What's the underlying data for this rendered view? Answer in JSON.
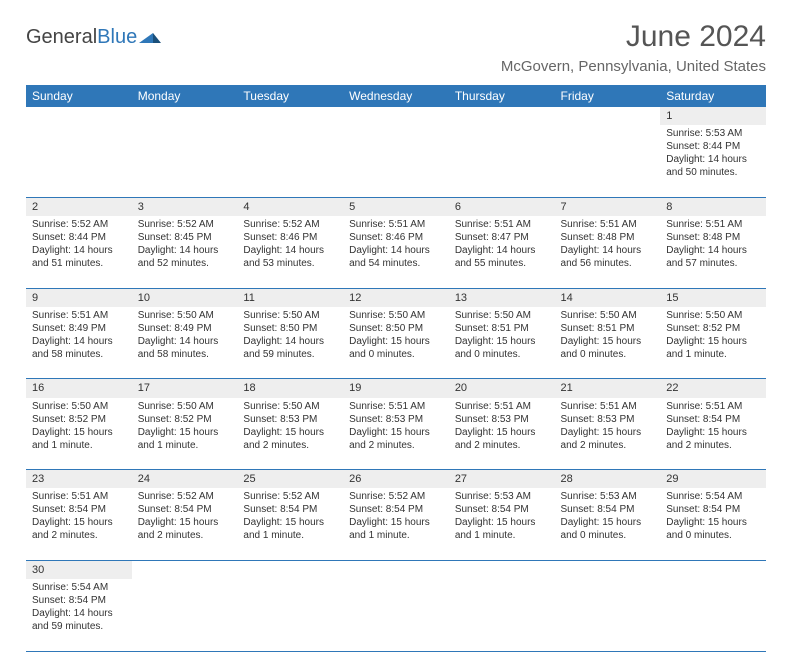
{
  "brand": {
    "part1": "General",
    "part2": "Blue"
  },
  "title": "June 2024",
  "location": "McGovern, Pennsylvania, United States",
  "colors": {
    "header_bg": "#2f77b8",
    "header_text": "#ffffff",
    "daynum_bg": "#eeeeee",
    "row_border": "#2f77b8",
    "title_color": "#555555",
    "location_color": "#666666"
  },
  "layout": {
    "columns": 7,
    "rows": 6,
    "start_day_index": 6
  },
  "weekdays": [
    "Sunday",
    "Monday",
    "Tuesday",
    "Wednesday",
    "Thursday",
    "Friday",
    "Saturday"
  ],
  "days": [
    {
      "n": 1,
      "sunrise": "5:53 AM",
      "sunset": "8:44 PM",
      "daylight": "14 hours and 50 minutes."
    },
    {
      "n": 2,
      "sunrise": "5:52 AM",
      "sunset": "8:44 PM",
      "daylight": "14 hours and 51 minutes."
    },
    {
      "n": 3,
      "sunrise": "5:52 AM",
      "sunset": "8:45 PM",
      "daylight": "14 hours and 52 minutes."
    },
    {
      "n": 4,
      "sunrise": "5:52 AM",
      "sunset": "8:46 PM",
      "daylight": "14 hours and 53 minutes."
    },
    {
      "n": 5,
      "sunrise": "5:51 AM",
      "sunset": "8:46 PM",
      "daylight": "14 hours and 54 minutes."
    },
    {
      "n": 6,
      "sunrise": "5:51 AM",
      "sunset": "8:47 PM",
      "daylight": "14 hours and 55 minutes."
    },
    {
      "n": 7,
      "sunrise": "5:51 AM",
      "sunset": "8:48 PM",
      "daylight": "14 hours and 56 minutes."
    },
    {
      "n": 8,
      "sunrise": "5:51 AM",
      "sunset": "8:48 PM",
      "daylight": "14 hours and 57 minutes."
    },
    {
      "n": 9,
      "sunrise": "5:51 AM",
      "sunset": "8:49 PM",
      "daylight": "14 hours and 58 minutes."
    },
    {
      "n": 10,
      "sunrise": "5:50 AM",
      "sunset": "8:49 PM",
      "daylight": "14 hours and 58 minutes."
    },
    {
      "n": 11,
      "sunrise": "5:50 AM",
      "sunset": "8:50 PM",
      "daylight": "14 hours and 59 minutes."
    },
    {
      "n": 12,
      "sunrise": "5:50 AM",
      "sunset": "8:50 PM",
      "daylight": "15 hours and 0 minutes."
    },
    {
      "n": 13,
      "sunrise": "5:50 AM",
      "sunset": "8:51 PM",
      "daylight": "15 hours and 0 minutes."
    },
    {
      "n": 14,
      "sunrise": "5:50 AM",
      "sunset": "8:51 PM",
      "daylight": "15 hours and 0 minutes."
    },
    {
      "n": 15,
      "sunrise": "5:50 AM",
      "sunset": "8:52 PM",
      "daylight": "15 hours and 1 minute."
    },
    {
      "n": 16,
      "sunrise": "5:50 AM",
      "sunset": "8:52 PM",
      "daylight": "15 hours and 1 minute."
    },
    {
      "n": 17,
      "sunrise": "5:50 AM",
      "sunset": "8:52 PM",
      "daylight": "15 hours and 1 minute."
    },
    {
      "n": 18,
      "sunrise": "5:50 AM",
      "sunset": "8:53 PM",
      "daylight": "15 hours and 2 minutes."
    },
    {
      "n": 19,
      "sunrise": "5:51 AM",
      "sunset": "8:53 PM",
      "daylight": "15 hours and 2 minutes."
    },
    {
      "n": 20,
      "sunrise": "5:51 AM",
      "sunset": "8:53 PM",
      "daylight": "15 hours and 2 minutes."
    },
    {
      "n": 21,
      "sunrise": "5:51 AM",
      "sunset": "8:53 PM",
      "daylight": "15 hours and 2 minutes."
    },
    {
      "n": 22,
      "sunrise": "5:51 AM",
      "sunset": "8:54 PM",
      "daylight": "15 hours and 2 minutes."
    },
    {
      "n": 23,
      "sunrise": "5:51 AM",
      "sunset": "8:54 PM",
      "daylight": "15 hours and 2 minutes."
    },
    {
      "n": 24,
      "sunrise": "5:52 AM",
      "sunset": "8:54 PM",
      "daylight": "15 hours and 2 minutes."
    },
    {
      "n": 25,
      "sunrise": "5:52 AM",
      "sunset": "8:54 PM",
      "daylight": "15 hours and 1 minute."
    },
    {
      "n": 26,
      "sunrise": "5:52 AM",
      "sunset": "8:54 PM",
      "daylight": "15 hours and 1 minute."
    },
    {
      "n": 27,
      "sunrise": "5:53 AM",
      "sunset": "8:54 PM",
      "daylight": "15 hours and 1 minute."
    },
    {
      "n": 28,
      "sunrise": "5:53 AM",
      "sunset": "8:54 PM",
      "daylight": "15 hours and 0 minutes."
    },
    {
      "n": 29,
      "sunrise": "5:54 AM",
      "sunset": "8:54 PM",
      "daylight": "15 hours and 0 minutes."
    },
    {
      "n": 30,
      "sunrise": "5:54 AM",
      "sunset": "8:54 PM",
      "daylight": "14 hours and 59 minutes."
    }
  ],
  "labels": {
    "sunrise": "Sunrise:",
    "sunset": "Sunset:",
    "daylight": "Daylight:"
  }
}
